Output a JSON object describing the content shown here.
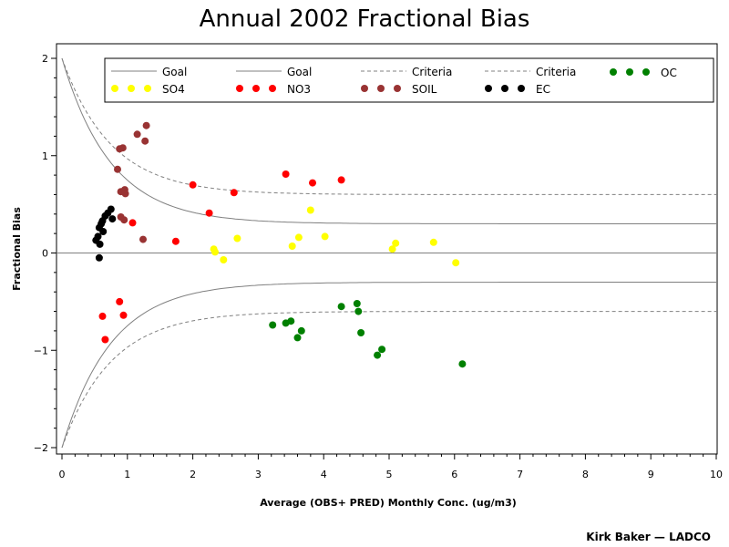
{
  "title": "Annual 2002 Fractional Bias",
  "credit": "Kirk Baker — LADCO",
  "chart_data": {
    "type": "scatter",
    "title": "Annual 2002 Fractional Bias",
    "xlabel": "Average (OBS+ PRED) Monthly Conc. (ug/m3)",
    "ylabel": "Fractional Bias",
    "xlim": [
      0,
      10
    ],
    "ylim": [
      -2,
      2
    ],
    "xticks": [
      "0",
      "1",
      "2",
      "3",
      "4",
      "5",
      "6",
      "7",
      "8",
      "9",
      "10"
    ],
    "yticks": [
      "-2",
      "-1",
      "0",
      "1",
      "2"
    ],
    "grid": false,
    "legend_position": "top",
    "reference_lines": [
      {
        "name": "Goal",
        "style": "solid",
        "color": "#808080",
        "limit": 0.3,
        "sign": 1
      },
      {
        "name": "Goal",
        "style": "solid",
        "color": "#808080",
        "limit": 0.3,
        "sign": -1
      },
      {
        "name": "Criteria",
        "style": "dashed",
        "color": "#808080",
        "limit": 0.6,
        "sign": 1
      },
      {
        "name": "Criteria",
        "style": "dashed",
        "color": "#808080",
        "limit": 0.6,
        "sign": -1
      }
    ],
    "series": [
      {
        "name": "SO4",
        "color": "#ffff00",
        "points": [
          [
            2.32,
            0.04
          ],
          [
            2.34,
            0.01
          ],
          [
            2.47,
            -0.07
          ],
          [
            2.68,
            0.15
          ],
          [
            3.52,
            0.07
          ],
          [
            3.62,
            0.16
          ],
          [
            3.8,
            0.44
          ],
          [
            4.02,
            0.17
          ],
          [
            5.05,
            0.04
          ],
          [
            5.1,
            0.1
          ],
          [
            5.68,
            0.11
          ],
          [
            6.02,
            -0.1
          ]
        ]
      },
      {
        "name": "NO3",
        "color": "#ff0000",
        "points": [
          [
            0.62,
            -0.65
          ],
          [
            0.66,
            -0.89
          ],
          [
            0.88,
            -0.5
          ],
          [
            0.94,
            -0.64
          ],
          [
            1.08,
            0.31
          ],
          [
            1.74,
            0.12
          ],
          [
            2.0,
            0.7
          ],
          [
            2.25,
            0.41
          ],
          [
            2.63,
            0.62
          ],
          [
            3.42,
            0.81
          ],
          [
            3.83,
            0.72
          ],
          [
            4.27,
            0.75
          ]
        ]
      },
      {
        "name": "SOIL",
        "color": "#993333",
        "points": [
          [
            0.85,
            0.86
          ],
          [
            0.88,
            1.07
          ],
          [
            0.93,
            1.08
          ],
          [
            0.9,
            0.63
          ],
          [
            0.96,
            0.65
          ],
          [
            0.97,
            0.61
          ],
          [
            0.9,
            0.37
          ],
          [
            0.95,
            0.34
          ],
          [
            1.15,
            1.22
          ],
          [
            1.27,
            1.15
          ],
          [
            1.29,
            1.31
          ],
          [
            1.24,
            0.14
          ]
        ]
      },
      {
        "name": "EC",
        "color": "#000000",
        "points": [
          [
            0.52,
            0.13
          ],
          [
            0.55,
            0.17
          ],
          [
            0.57,
            0.26
          ],
          [
            0.6,
            0.3
          ],
          [
            0.58,
            0.09
          ],
          [
            0.62,
            0.33
          ],
          [
            0.66,
            0.38
          ],
          [
            0.7,
            0.41
          ],
          [
            0.75,
            0.45
          ],
          [
            0.77,
            0.35
          ],
          [
            0.57,
            -0.05
          ],
          [
            0.63,
            0.22
          ]
        ]
      },
      {
        "name": "OC",
        "color": "#008000",
        "points": [
          [
            3.22,
            -0.74
          ],
          [
            3.42,
            -0.72
          ],
          [
            3.5,
            -0.7
          ],
          [
            3.6,
            -0.87
          ],
          [
            3.66,
            -0.8
          ],
          [
            4.27,
            -0.55
          ],
          [
            4.51,
            -0.52
          ],
          [
            4.53,
            -0.6
          ],
          [
            4.57,
            -0.82
          ],
          [
            4.82,
            -1.05
          ],
          [
            4.89,
            -0.99
          ],
          [
            6.12,
            -1.14
          ]
        ]
      }
    ]
  }
}
